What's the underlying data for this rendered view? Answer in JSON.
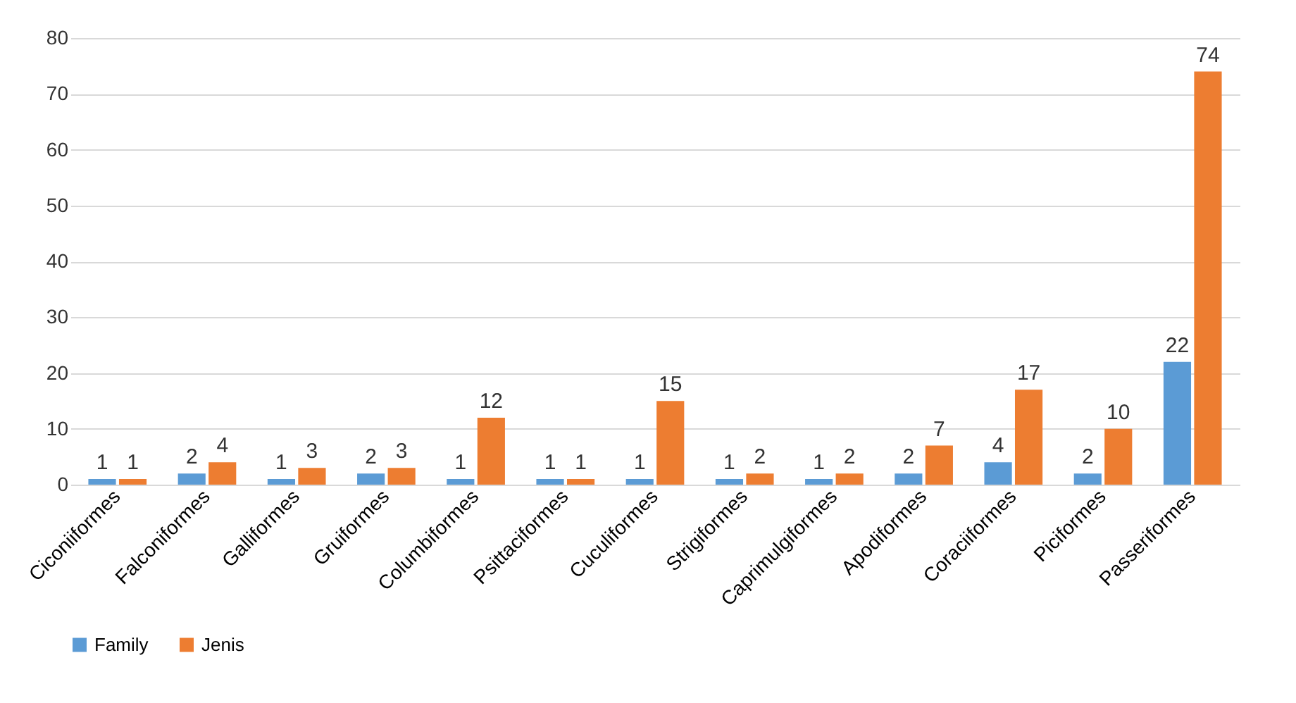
{
  "chart_data": {
    "type": "bar",
    "categories": [
      "Ciconiiformes",
      "Falconiformes",
      "Galliformes",
      "Gruiformes",
      "Columbiformes",
      "Psittaciformes",
      "Cuculiformes",
      "Strigiformes",
      "Caprimulgiformes",
      "Apodiformes",
      "Coraciiformes",
      "Piciformes",
      "Passeriformes"
    ],
    "series": [
      {
        "name": "Family",
        "color": "#5b9bd5",
        "values": [
          1,
          2,
          1,
          2,
          1,
          1,
          1,
          1,
          1,
          2,
          4,
          2,
          22
        ]
      },
      {
        "name": "Jenis",
        "color": "#ed7d31",
        "values": [
          1,
          4,
          3,
          3,
          12,
          1,
          15,
          2,
          2,
          7,
          17,
          10,
          74
        ]
      }
    ],
    "ylim": [
      0,
      80
    ],
    "yticks": [
      0,
      10,
      20,
      30,
      40,
      50,
      60,
      70,
      80
    ],
    "grid": "y",
    "legend": "bottom",
    "data_labels": true
  }
}
